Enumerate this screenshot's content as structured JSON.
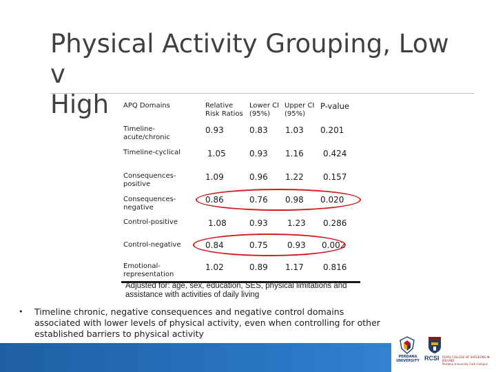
{
  "slide": {
    "title_line1": "Physical Activity Grouping, Low v",
    "title_line2": "High"
  },
  "table": {
    "headers": {
      "domains": "APQ Domains",
      "rr_line1": "Relative",
      "rr_line2": "Risk Ratios",
      "lower_line1": "Lower CI",
      "lower_line2": "(95%)",
      "upper_line1": "Upper CI",
      "upper_line2": "(95%)",
      "pvalue": "P-value"
    },
    "rows": [
      {
        "label1": "Timeline-",
        "label2": "acute/chronic",
        "rr": "0.93",
        "lower": "0.83",
        "upper": "1.03",
        "p": "0.201"
      },
      {
        "label1": "Timeline-cyclical",
        "label2": "",
        "rr": "1.05",
        "lower": "0.93",
        "upper": "1.16",
        "p": "0.424"
      },
      {
        "label1": "Consequences-",
        "label2": "positive",
        "rr": "1.09",
        "lower": "0.96",
        "upper": "1.22",
        "p": "0.157"
      },
      {
        "label1": "Consequences-",
        "label2": "negative",
        "rr": "0.86",
        "lower": "0.76",
        "upper": "0.98",
        "p": "0.020"
      },
      {
        "label1": "Control-positive",
        "label2": "",
        "rr": "1.08",
        "lower": "0.93",
        "upper": "1.23",
        "p": "0.286"
      },
      {
        "label1": "Control-negative",
        "label2": "",
        "rr": "0.84",
        "lower": "0.75",
        "upper": "0.93",
        "p": "0.002"
      },
      {
        "label1": "Emotional-",
        "label2": "representation",
        "rr": "1.02",
        "lower": "0.89",
        "upper": "1.17",
        "p": "0.816"
      }
    ],
    "note_line1": "Adjusted for: age, sex, education, SES,  physical limitations  and",
    "note_line2": "assistance with activities of daily living"
  },
  "bullet": {
    "marker": "•",
    "line1": "Timeline chronic, negative consequences and negative control domains",
    "line2": "associated with lower levels of physical activity, even when controlling for other",
    "line3": "established barriers to physical activity"
  },
  "logos": {
    "perdana_line1": "PERDANA",
    "perdana_line2": "UNIVERSITY",
    "rcsi": "RCSI",
    "rcsi_sub1": "ROYAL COLLEGE OF SURGEONS IN IRELAND",
    "rcsi_sub2": "Perdana University Cork Campus"
  },
  "colors": {
    "highlight": "#d01c1c",
    "footer": "#2a78c6"
  }
}
